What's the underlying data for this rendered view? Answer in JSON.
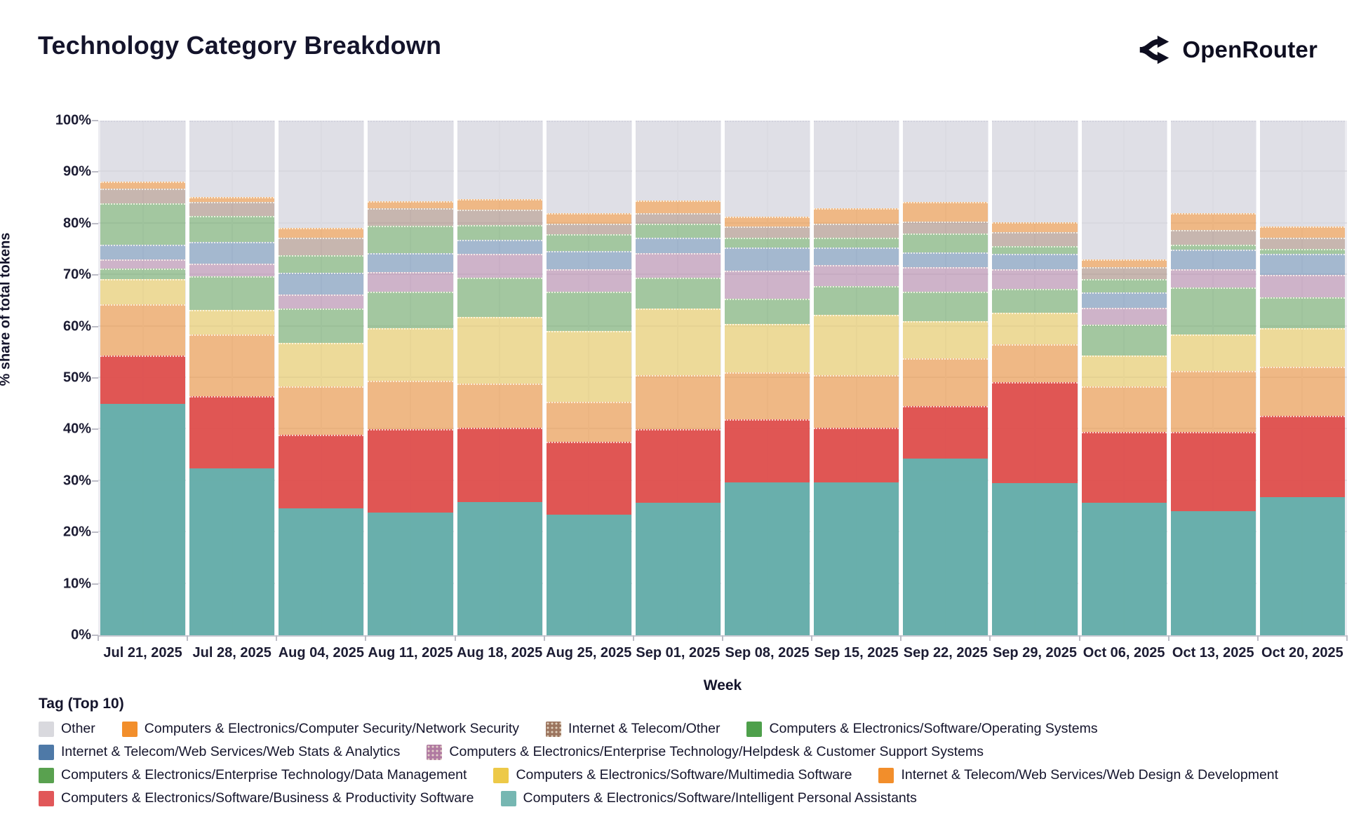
{
  "header": {
    "title": "Technology Category Breakdown",
    "brand": "OpenRouter"
  },
  "axes": {
    "y_title": "% share of total tokens",
    "x_title": "Week",
    "y_tick_labels": [
      "0%",
      "10%",
      "20%",
      "30%",
      "40%",
      "50%",
      "60%",
      "70%",
      "80%",
      "90%",
      "100%"
    ]
  },
  "legend": {
    "title": "Tag (Top 10)",
    "rows": [
      [
        10,
        9,
        8,
        7
      ],
      [
        6,
        5
      ],
      [
        4,
        3,
        2
      ],
      [
        1,
        0
      ]
    ]
  },
  "colors": {
    "plot_bg": "#ececf1",
    "gridline": "#dcdce3",
    "text": "#14142b"
  },
  "chart_data": {
    "type": "bar",
    "stacked": true,
    "percent": true,
    "title": "Technology Category Breakdown",
    "xlabel": "Week",
    "ylabel": "% share of total tokens",
    "ylim": [
      0,
      100
    ],
    "grid": true,
    "legend_position": "bottom",
    "categories": [
      "Jul 21, 2025",
      "Jul 28, 2025",
      "Aug 04, 2025",
      "Aug 11, 2025",
      "Aug 18, 2025",
      "Aug 25, 2025",
      "Sep 01, 2025",
      "Sep 08, 2025",
      "Sep 15, 2025",
      "Sep 22, 2025",
      "Sep 29, 2025",
      "Oct 06, 2025",
      "Oct 13, 2025",
      "Oct 20, 2025"
    ],
    "series": [
      {
        "name": "Computers & Electronics/Software/Intelligent Personal Assistants",
        "legend_color": "#76b7b2",
        "bar_color": "rgba(98,172,168,0.95)",
        "pattern": "none",
        "values": [
          44.9,
          32.4,
          24.6,
          23.8,
          25.9,
          23.5,
          25.7,
          29.7,
          29.7,
          34.3,
          29.5,
          25.7,
          24.1,
          26.8
        ]
      },
      {
        "name": "Computers & Electronics/Software/Business & Productivity Software",
        "legend_color": "#e15759",
        "bar_color": "rgba(222,73,70,0.92)",
        "pattern": "none",
        "values": [
          9.4,
          14.1,
          14.3,
          16.2,
          14.4,
          14.1,
          14.3,
          12.2,
          10.6,
          10.3,
          19.7,
          13.8,
          15.4,
          15.9
        ]
      },
      {
        "name": "Internet & Telecom/Web Services/Web Design & Development",
        "legend_color": "#f28e2b",
        "bar_color": "rgba(242,142,43,0.55)",
        "pattern": "none",
        "values": [
          10.0,
          11.9,
          9.5,
          9.5,
          8.6,
          7.8,
          10.5,
          9.2,
          10.2,
          9.2,
          7.3,
          8.9,
          11.9,
          9.5
        ]
      },
      {
        "name": "Computers & Electronics/Software/Multimedia Software",
        "legend_color": "#edc948",
        "bar_color": "rgba(237,201,72,0.52)",
        "pattern": "none",
        "values": [
          4.9,
          4.8,
          8.4,
          10.2,
          13.0,
          13.8,
          13.0,
          9.4,
          11.7,
          7.3,
          6.2,
          5.9,
          7.0,
          7.5
        ]
      },
      {
        "name": "Computers & Electronics/Enterprise Technology/Data Management",
        "legend_color": "#59a14f",
        "bar_color": "rgba(89,161,79,0.5)",
        "pattern": "none",
        "values": [
          2.1,
          6.5,
          6.7,
          7.1,
          7.6,
          7.6,
          6.0,
          4.9,
          5.6,
          5.7,
          4.6,
          6.0,
          9.2,
          6.0
        ]
      },
      {
        "name": "Computers & Electronics/Enterprise Technology/Helpdesk & Customer Support Systems",
        "legend_color": "#b07aa1",
        "bar_color": "rgba(176,122,161,0.5)",
        "pattern": "dots",
        "values": [
          1.7,
          2.5,
          2.7,
          3.8,
          4.6,
          4.3,
          4.8,
          5.4,
          4.1,
          4.7,
          3.8,
          3.3,
          3.5,
          4.3
        ]
      },
      {
        "name": "Internet & Telecom/Web Services/Web Stats & Analytics",
        "legend_color": "#4e79a7",
        "bar_color": "rgba(78,121,167,0.45)",
        "pattern": "none",
        "values": [
          2.9,
          4.3,
          4.2,
          3.7,
          2.8,
          3.5,
          3.0,
          4.6,
          3.5,
          2.9,
          3.0,
          3.0,
          3.9,
          4.1
        ]
      },
      {
        "name": "Computers & Electronics/Software/Operating Systems",
        "legend_color": "#4ea04b",
        "bar_color": "rgba(89,161,79,0.5)",
        "pattern": "none",
        "values": [
          8.0,
          5.0,
          3.4,
          5.3,
          2.8,
          3.4,
          2.7,
          1.9,
          1.9,
          3.7,
          1.5,
          2.6,
          0.9,
          1.0
        ]
      },
      {
        "name": "Internet & Telecom/Other",
        "legend_color": "#9c755f",
        "bar_color": "rgba(156,117,95,0.45)",
        "pattern": "dots",
        "values": [
          2.9,
          2.7,
          3.5,
          3.4,
          3.0,
          2.0,
          2.0,
          2.2,
          2.7,
          2.3,
          2.7,
          2.3,
          2.9,
          2.2
        ]
      },
      {
        "name": "Computers & Electronics/Computer Security/Network Security",
        "legend_color": "#f28e2b",
        "bar_color": "rgba(242,142,43,0.55)",
        "pattern": "none",
        "values": [
          1.3,
          0.9,
          1.9,
          1.3,
          2.0,
          2.0,
          2.5,
          1.9,
          3.0,
          3.8,
          2.0,
          1.6,
          3.2,
          2.2
        ]
      },
      {
        "name": "Other",
        "legend_color": "#d9d9de",
        "bar_color": "rgba(213,213,221,0.55)",
        "pattern": "none",
        "values": [
          11.9,
          14.9,
          20.8,
          15.7,
          15.3,
          18.0,
          15.5,
          18.6,
          17.0,
          15.8,
          19.7,
          26.9,
          18.0,
          20.5
        ]
      }
    ]
  }
}
